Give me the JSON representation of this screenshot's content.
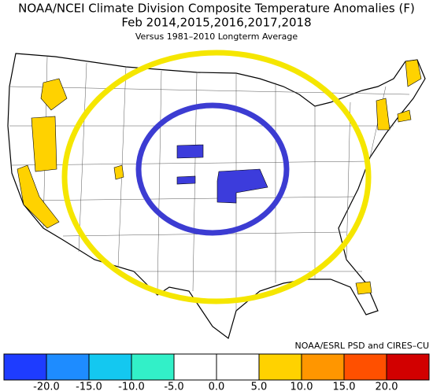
{
  "header": {
    "title": "NOAA/NCEI Climate Division Composite Temperature Anomalies (F)",
    "subtitle": "Feb  2014,2015,2016,2017,2018",
    "note": "Versus 1981–2010 Longterm Average"
  },
  "credit": "NOAA/ESRL PSD and CIRES–CU",
  "colorbar": {
    "colors": [
      "#1e3cff",
      "#1e8cff",
      "#14c8f0",
      "#32f0c8",
      "#ffffff",
      "#ffffff",
      "#ffd200",
      "#ff9600",
      "#ff5000",
      "#d20000"
    ],
    "labels": [
      "-20.0",
      "-15.0",
      "-10.0",
      "-5.0",
      "0.0",
      "5.0",
      "10.0",
      "15.0",
      "20.0"
    ]
  }
}
